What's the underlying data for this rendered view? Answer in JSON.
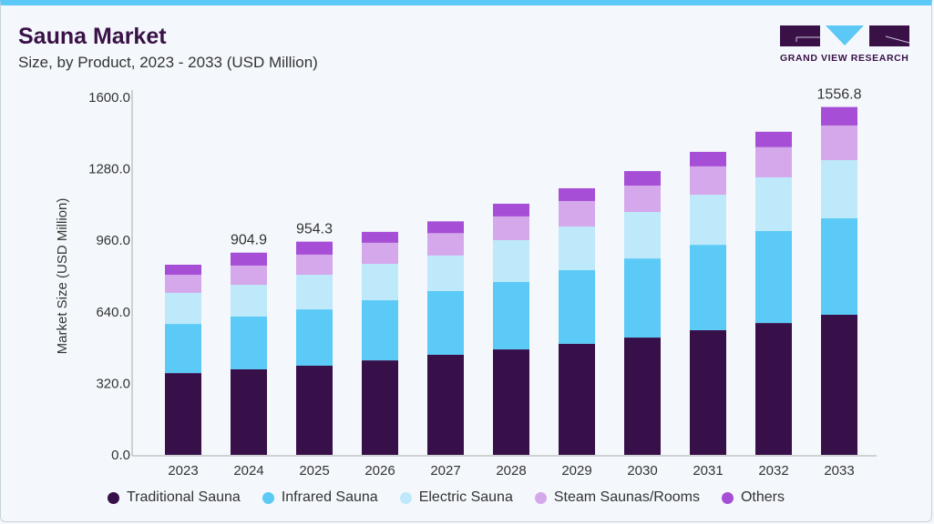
{
  "header": {
    "title": "Sauna Market",
    "subtitle": "Size, by Product, 2023 - 2033 (USD Million)",
    "logo_text": "GRAND VIEW RESEARCH"
  },
  "colors": {
    "accent": "#5bc8f5",
    "brand": "#3a1147"
  },
  "chart_data": {
    "type": "bar",
    "stacked": true,
    "title": "Sauna Market",
    "subtitle": "Size, by Product, 2023 - 2033 (USD Million)",
    "xlabel": "",
    "ylabel": "Market Size (USD Million)",
    "ylim": [
      0,
      1600
    ],
    "yticks": [
      "0.0",
      "320.0",
      "640.0",
      "960.0",
      "1280.0",
      "1600.0"
    ],
    "grid": false,
    "legend_placement": "bottom",
    "categories": [
      "2023",
      "2024",
      "2025",
      "2026",
      "2027",
      "2028",
      "2029",
      "2030",
      "2031",
      "2032",
      "2033"
    ],
    "series": [
      {
        "name": "Traditional Sauna",
        "color": "#37104a",
        "values": [
          366,
          383,
          399,
          423,
          448,
          472,
          497,
          525,
          558,
          590,
          627
        ]
      },
      {
        "name": "Infrared Sauna",
        "color": "#5bcaf7",
        "values": [
          220,
          236,
          252,
          269,
          285,
          302,
          330,
          354,
          382,
          412,
          432
        ]
      },
      {
        "name": "Electric Sauna",
        "color": "#bde9fa",
        "values": [
          139,
          142,
          155,
          163,
          159,
          187,
          195,
          208,
          224,
          240,
          260
        ]
      },
      {
        "name": "Steam Saunas/Rooms",
        "color": "#d5a8ec",
        "values": [
          81,
          86,
          90,
          94,
          100,
          106,
          114,
          118,
          127,
          135,
          155
        ]
      },
      {
        "name": "Others",
        "color": "#a64fd6",
        "values": [
          45,
          57.9,
          58.3,
          49,
          53,
          57,
          57,
          65,
          65,
          69,
          82.8
        ]
      }
    ],
    "data_labels": [
      {
        "category": "2024",
        "text": "904.9"
      },
      {
        "category": "2025",
        "text": "954.3"
      },
      {
        "category": "2033",
        "text": "1556.8"
      }
    ]
  }
}
